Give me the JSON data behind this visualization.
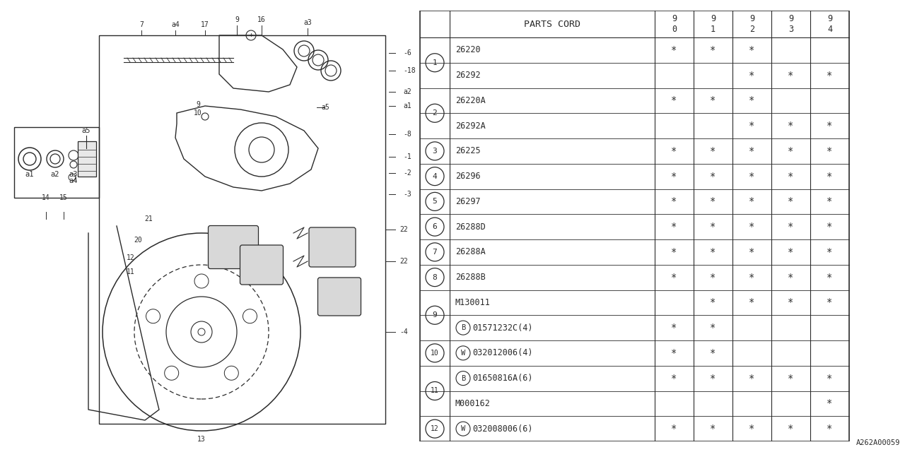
{
  "bg_color": "#ffffff",
  "table": {
    "header_col": "PARTS CORD",
    "year_cols": [
      "9\n0",
      "9\n1",
      "9\n2",
      "9\n3",
      "9\n4"
    ],
    "rows": [
      {
        "num": "1",
        "sub": false,
        "prefix": "",
        "code": "26220",
        "marks": [
          true,
          true,
          true,
          false,
          false
        ]
      },
      {
        "num": "",
        "sub": false,
        "prefix": "",
        "code": "26292",
        "marks": [
          false,
          false,
          true,
          true,
          true
        ]
      },
      {
        "num": "2",
        "sub": false,
        "prefix": "",
        "code": "26220A",
        "marks": [
          true,
          true,
          true,
          false,
          false
        ]
      },
      {
        "num": "",
        "sub": false,
        "prefix": "",
        "code": "26292A",
        "marks": [
          false,
          false,
          true,
          true,
          true
        ]
      },
      {
        "num": "3",
        "sub": false,
        "prefix": "",
        "code": "26225",
        "marks": [
          true,
          true,
          true,
          true,
          true
        ]
      },
      {
        "num": "4",
        "sub": false,
        "prefix": "",
        "code": "26296",
        "marks": [
          true,
          true,
          true,
          true,
          true
        ]
      },
      {
        "num": "5",
        "sub": false,
        "prefix": "",
        "code": "26297",
        "marks": [
          true,
          true,
          true,
          true,
          true
        ]
      },
      {
        "num": "6",
        "sub": false,
        "prefix": "",
        "code": "26288D",
        "marks": [
          true,
          true,
          true,
          true,
          true
        ]
      },
      {
        "num": "7",
        "sub": false,
        "prefix": "",
        "code": "26288A",
        "marks": [
          true,
          true,
          true,
          true,
          true
        ]
      },
      {
        "num": "8",
        "sub": false,
        "prefix": "",
        "code": "26288B",
        "marks": [
          true,
          true,
          true,
          true,
          true
        ]
      },
      {
        "num": "9",
        "sub": false,
        "prefix": "",
        "code": "M130011",
        "marks": [
          false,
          true,
          true,
          true,
          true
        ]
      },
      {
        "num": "",
        "sub": true,
        "prefix": "B",
        "code": "01571232C(4)",
        "marks": [
          true,
          true,
          false,
          false,
          false
        ]
      },
      {
        "num": "10",
        "sub": true,
        "prefix": "W",
        "code": "032012006(4)",
        "marks": [
          true,
          true,
          false,
          false,
          false
        ]
      },
      {
        "num": "11",
        "sub": true,
        "prefix": "B",
        "code": "01650816A(6)",
        "marks": [
          true,
          true,
          true,
          true,
          true
        ]
      },
      {
        "num": "",
        "sub": false,
        "prefix": "",
        "code": "M000162",
        "marks": [
          false,
          false,
          false,
          false,
          true
        ]
      },
      {
        "num": "12",
        "sub": true,
        "prefix": "W",
        "code": "032008006(6)",
        "marks": [
          true,
          true,
          true,
          true,
          true
        ]
      }
    ]
  },
  "ref_code": "A262A00059",
  "diag_labels_top": [
    "7",
    "a4",
    "17",
    "9",
    "16",
    "a3"
  ],
  "diag_labels_right_top": [
    "-6",
    "-18",
    "a2",
    "a1"
  ],
  "diag_labels_right_mid": [
    "-8",
    "-1",
    "-2",
    "-3"
  ],
  "diag_labels_right_bot": [
    "-22",
    "-22",
    "-4"
  ],
  "star": "*"
}
